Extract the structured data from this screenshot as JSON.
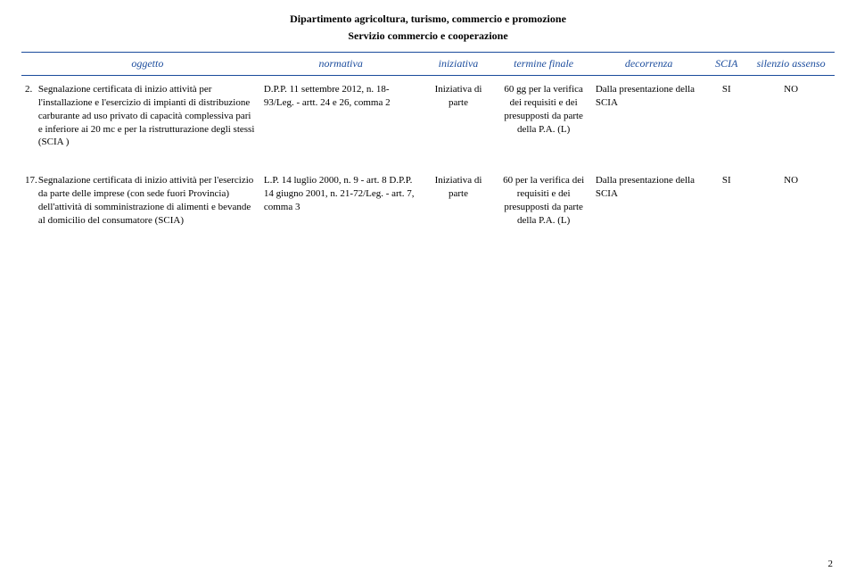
{
  "header": {
    "title": "Dipartimento agricoltura, turismo, commercio e promozione",
    "subtitle": "Servizio commercio e cooperazione"
  },
  "columns": {
    "oggetto": "oggetto",
    "normativa": "normativa",
    "iniziativa": "iniziativa",
    "termine": "termine finale",
    "decorrenza": "decorrenza",
    "scia": "SCIA",
    "silenzio": "silenzio assenso"
  },
  "rows": [
    {
      "idx": "2.",
      "oggetto": "Segnalazione certificata di inizio attività per l'installazione e l'esercizio di impianti di distribuzione carburante ad uso privato di capacità complessiva pari e inferiore ai 20 mc e per la ristrutturazione degli stessi (SCIA )",
      "normativa": "D.P.P. 11 settembre 2012, n. 18-93/Leg. - artt. 24 e 26, comma 2",
      "iniziativa": "Iniziativa di parte",
      "termine": "60 gg per la verifica dei requisiti e dei presupposti da parte della P.A. (L)",
      "decorrenza": "Dalla presentazione della SCIA",
      "scia": "SI",
      "silenzio": "NO"
    },
    {
      "idx": "17.",
      "oggetto": "Segnalazione certificata di inizio attività per l'esercizio da parte delle imprese (con sede fuori Provincia) dell'attività di somministrazione di alimenti e bevande al domicilio del consumatore (SCIA)",
      "normativa": "L.P. 14 luglio 2000, n. 9 - art. 8 D.P.P. 14 giugno 2001, n. 21-72/Leg. - art. 7, comma 3",
      "iniziativa": "Iniziativa di parte",
      "termine": "60 per la verifica dei requisiti e dei presupposti da parte della P.A. (L)",
      "decorrenza": "Dalla presentazione della SCIA",
      "scia": "SI",
      "silenzio": "NO"
    }
  ],
  "page_number": "2",
  "style": {
    "header_color": "#1a4b9c",
    "border_color": "#1a4b9c",
    "background": "#ffffff",
    "text_color": "#000000",
    "header_font_style": "italic",
    "font_family": "Times New Roman"
  }
}
